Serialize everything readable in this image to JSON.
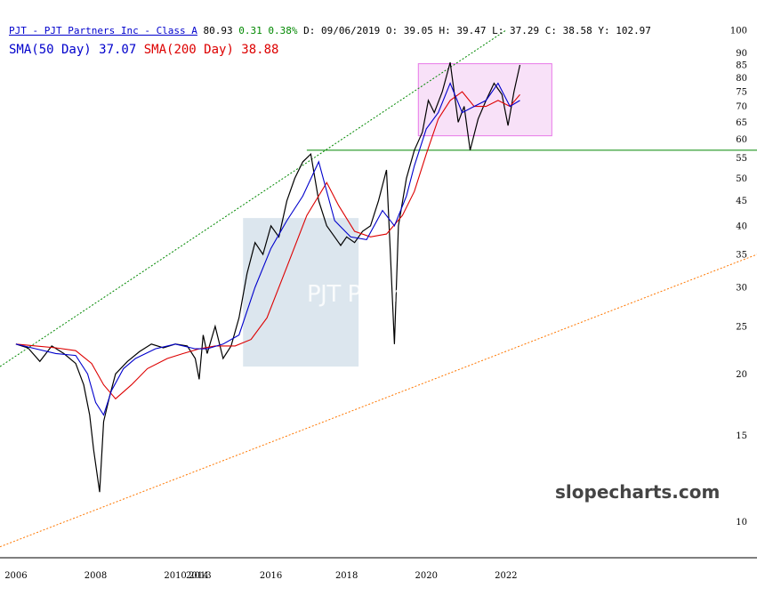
{
  "header": {
    "symbol_line": "PJT - PJT Partners Inc - Class A",
    "last": "80.93",
    "change": "0.31",
    "change_pct": "0.38%",
    "date": "D: 09/06/2019",
    "open": "O: 39.05",
    "high": "H: 39.47",
    "low": "L: 37.29",
    "close": "C: 38.58",
    "volume": "Y: 102.97",
    "sma50_label": "SMA(50 Day) 37.07",
    "sma200_label": "SMA(200 Day) 38.88"
  },
  "watermark": "PJT Partners",
  "brand": "slopecharts.com",
  "colors": {
    "price": "#000000",
    "sma50": "#0000cc",
    "sma200": "#dd0000",
    "upper_trend": "#008800",
    "lower_trend": "#ff7700",
    "horizontal_line": "#008800",
    "box_fill": "#f8e1f8",
    "box_stroke": "#e878e8",
    "shade": "#dce6ee"
  },
  "chart_data": {
    "type": "line",
    "y_scale": "log",
    "ylim": [
      9,
      100
    ],
    "xlim": [
      2005.6,
      2024.6
    ],
    "y_ticks": [
      10,
      15,
      20,
      25,
      30,
      35,
      40,
      45,
      50,
      55,
      60,
      65,
      70,
      75,
      80,
      85,
      90,
      100
    ],
    "x_ticks": [
      {
        "label": "2006",
        "value": 2006
      },
      {
        "label": "2008",
        "value": 2008
      },
      {
        "label": "2010",
        "value": 2010
      },
      {
        "label": "2014",
        "value": 2010.55
      },
      {
        "label": "2013",
        "value": 2010.62
      },
      {
        "label": "2016",
        "value": 2012.4
      },
      {
        "label": "2018",
        "value": 2014.3
      },
      {
        "label": "2020",
        "value": 2016.3
      },
      {
        "label": "2022",
        "value": 2018.3
      }
    ],
    "series": [
      {
        "key": "price",
        "x": [
          2006.0,
          2006.3,
          2006.6,
          2006.9,
          2007.2,
          2007.5,
          2007.7,
          2007.85,
          2007.95,
          2008.1,
          2008.2,
          2008.35,
          2008.5,
          2008.8,
          2009.1,
          2009.4,
          2009.7,
          2010.0,
          2010.3,
          2010.5,
          2010.6,
          2010.7,
          2010.8,
          2011.0,
          2011.2,
          2011.4,
          2011.6,
          2011.8,
          2012.0,
          2012.2,
          2012.4,
          2012.6,
          2012.8,
          2013.0,
          2013.2,
          2013.4,
          2013.6,
          2013.8,
          2014.0,
          2014.15,
          2014.3,
          2014.5,
          2014.7,
          2014.9,
          2015.1,
          2015.3,
          2015.4,
          2015.5,
          2015.6,
          2015.8,
          2016.0,
          2016.2,
          2016.35,
          2016.5,
          2016.7,
          2016.9,
          2017.1,
          2017.25,
          2017.4,
          2017.6,
          2017.8,
          2018.0,
          2018.2,
          2018.35,
          2018.5,
          2018.65
        ],
        "y": [
          23.0,
          22.6,
          21.2,
          22.8,
          22.0,
          21.0,
          19.0,
          16.5,
          14.0,
          11.5,
          16.0,
          18.0,
          20.0,
          21.2,
          22.2,
          23.0,
          22.6,
          23.0,
          22.8,
          21.5,
          19.5,
          24.0,
          22.0,
          25.0,
          21.5,
          22.8,
          26.0,
          32.0,
          37.0,
          35.0,
          40.0,
          38.0,
          45.0,
          50.0,
          54.0,
          56.0,
          45.0,
          40.0,
          38.0,
          36.5,
          38.0,
          37.0,
          39.0,
          40.0,
          45.0,
          52.0,
          35.0,
          23.0,
          40.0,
          50.0,
          57.0,
          62.0,
          72.0,
          68.0,
          75.0,
          86.0,
          65.0,
          70.0,
          57.0,
          66.0,
          72.0,
          78.0,
          74.0,
          64.0,
          75.0,
          85.0
        ]
      },
      {
        "key": "sma50",
        "x": [
          2006.0,
          2006.5,
          2007.0,
          2007.5,
          2007.8,
          2008.0,
          2008.2,
          2008.4,
          2008.7,
          2009.0,
          2009.5,
          2010.0,
          2010.5,
          2010.8,
          2011.2,
          2011.6,
          2012.0,
          2012.4,
          2012.8,
          2013.2,
          2013.6,
          2014.0,
          2014.4,
          2014.8,
          2015.2,
          2015.5,
          2015.8,
          2016.0,
          2016.3,
          2016.6,
          2016.9,
          2017.2,
          2017.5,
          2017.8,
          2018.1,
          2018.4,
          2018.65
        ],
        "y": [
          23.0,
          22.5,
          22.0,
          21.8,
          20.0,
          17.5,
          16.5,
          18.5,
          20.5,
          21.5,
          22.5,
          23.0,
          22.5,
          22.5,
          23.0,
          24.0,
          30.0,
          36.0,
          41.0,
          46.0,
          54.0,
          41.0,
          38.0,
          37.5,
          43.0,
          40.0,
          46.0,
          53.0,
          63.0,
          68.0,
          78.0,
          68.0,
          70.0,
          72.0,
          78.0,
          70.0,
          72.0
        ]
      },
      {
        "key": "sma200",
        "x": [
          2006.0,
          2006.5,
          2007.0,
          2007.5,
          2007.9,
          2008.2,
          2008.5,
          2008.9,
          2009.3,
          2009.8,
          2010.2,
          2010.6,
          2011.0,
          2011.5,
          2011.9,
          2012.3,
          2012.8,
          2013.3,
          2013.8,
          2014.1,
          2014.5,
          2014.9,
          2015.3,
          2015.7,
          2016.0,
          2016.3,
          2016.6,
          2016.9,
          2017.2,
          2017.5,
          2017.8,
          2018.1,
          2018.4,
          2018.65
        ],
        "y": [
          23.0,
          22.8,
          22.6,
          22.3,
          21.0,
          19.0,
          17.8,
          19.0,
          20.5,
          21.5,
          22.0,
          22.5,
          22.8,
          22.8,
          23.5,
          26.0,
          33.0,
          42.0,
          49.0,
          44.0,
          39.0,
          38.0,
          38.5,
          42.0,
          47.0,
          56.0,
          66.0,
          72.0,
          75.0,
          70.0,
          70.0,
          72.0,
          70.0,
          74.0
        ]
      }
    ],
    "annotations": {
      "upper_trendline": {
        "from": [
          2005.6,
          20.7
        ],
        "to": [
          2018.3,
          100.0
        ]
      },
      "lower_trendline": {
        "from": [
          2005.6,
          8.9
        ],
        "to": [
          2024.6,
          35.0
        ]
      },
      "horizontal_line": {
        "y": 57.0,
        "x_from": 2013.3,
        "x_to": 2024.6
      },
      "range_box": {
        "x_from": 2016.1,
        "x_to": 2019.45,
        "y_from": 61.0,
        "y_to": 85.5
      },
      "shaded_region": {
        "x_from": 2011.7,
        "x_to": 2014.6,
        "y_from": 20.7,
        "y_to": 41.5
      }
    }
  }
}
